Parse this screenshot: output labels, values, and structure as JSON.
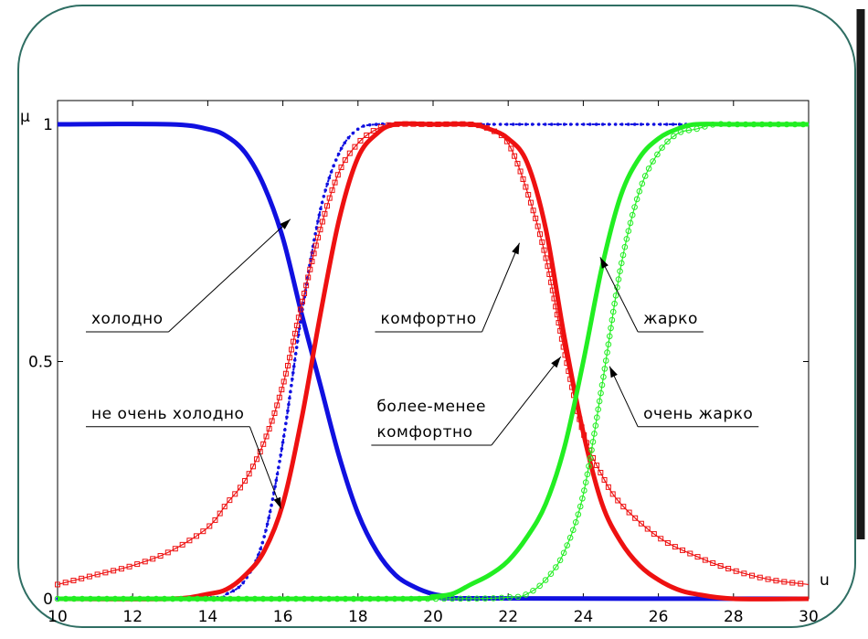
{
  "chart_data": {
    "type": "line",
    "title": "",
    "xlabel": "u",
    "ylabel": "μ",
    "xlim": [
      10,
      30
    ],
    "ylim": [
      0,
      1
    ],
    "x_ticks": [
      "10",
      "12",
      "14",
      "16",
      "18",
      "20",
      "22",
      "24",
      "26",
      "28",
      "30"
    ],
    "y_ticks": [
      "0",
      "0.5",
      "1"
    ],
    "grid": false,
    "series": [
      {
        "key": "cold",
        "color": "#1010e0",
        "style": "solid",
        "marker": "none",
        "x": [
          10,
          13,
          14,
          14.5,
          15,
          15.5,
          16,
          16.5,
          17,
          17.5,
          18,
          18.5,
          19,
          19.5,
          20,
          20.5,
          21,
          30
        ],
        "y": [
          1,
          1,
          0.99,
          0.975,
          0.94,
          0.87,
          0.76,
          0.6,
          0.45,
          0.3,
          0.18,
          0.1,
          0.05,
          0.025,
          0.01,
          0.004,
          0.001,
          0
        ]
      },
      {
        "key": "not_very_cold",
        "color": "#1010e0",
        "style": "dotted",
        "marker": "dot",
        "x": [
          10,
          14,
          14.5,
          15,
          15.5,
          16,
          16.5,
          17,
          17.5,
          18,
          18.5,
          19,
          20,
          30
        ],
        "y": [
          0,
          0.002,
          0.01,
          0.04,
          0.13,
          0.33,
          0.6,
          0.82,
          0.94,
          0.99,
          1,
          1,
          1,
          1
        ]
      },
      {
        "key": "comfortable",
        "color": "#ee1111",
        "style": "solid",
        "marker": "none",
        "x": [
          10,
          13,
          14,
          14.5,
          15,
          15.5,
          16,
          16.5,
          17,
          17.5,
          18,
          18.5,
          19,
          20,
          21,
          21.5,
          22,
          22.5,
          23,
          23.5,
          24,
          24.5,
          25,
          25.5,
          26,
          26.5,
          27,
          28,
          30
        ],
        "y": [
          0,
          0,
          0.01,
          0.02,
          0.05,
          0.1,
          0.2,
          0.38,
          0.6,
          0.8,
          0.93,
          0.98,
          1,
          1,
          1,
          0.99,
          0.97,
          0.92,
          0.78,
          0.55,
          0.35,
          0.2,
          0.12,
          0.07,
          0.04,
          0.02,
          0.01,
          0,
          0
        ]
      },
      {
        "key": "more_or_less_comfortable",
        "color": "#ee1111",
        "style": "solid-thin",
        "marker": "square",
        "x": [
          10,
          11,
          12,
          13,
          14,
          14.5,
          15,
          15.5,
          16,
          16.5,
          17,
          17.5,
          18,
          18.5,
          19,
          20,
          21,
          21.5,
          22,
          22.5,
          23,
          23.5,
          24,
          24.5,
          25,
          26,
          27,
          28,
          29,
          30
        ],
        "y": [
          0.03,
          0.05,
          0.07,
          0.1,
          0.15,
          0.2,
          0.25,
          0.33,
          0.45,
          0.62,
          0.78,
          0.9,
          0.96,
          0.99,
          1,
          1,
          1,
          0.99,
          0.96,
          0.86,
          0.72,
          0.52,
          0.35,
          0.26,
          0.2,
          0.13,
          0.09,
          0.06,
          0.04,
          0.03
        ]
      },
      {
        "key": "hot",
        "color": "#22ee22",
        "style": "solid",
        "marker": "none",
        "x": [
          10,
          19,
          20,
          20.5,
          21,
          21.5,
          22,
          22.5,
          23,
          23.5,
          24,
          24.5,
          25,
          25.5,
          26,
          26.5,
          27,
          28,
          30
        ],
        "y": [
          0,
          0,
          0.005,
          0.01,
          0.03,
          0.05,
          0.08,
          0.13,
          0.2,
          0.32,
          0.5,
          0.7,
          0.85,
          0.93,
          0.97,
          0.99,
          1,
          1,
          1
        ]
      },
      {
        "key": "very_hot",
        "color": "#22ee22",
        "style": "solid-thin",
        "marker": "circle",
        "x": [
          10,
          20,
          22,
          22.5,
          23,
          23.5,
          24,
          24.5,
          25,
          25.5,
          26,
          26.5,
          27,
          27.5,
          28,
          30
        ],
        "y": [
          0,
          0,
          0.003,
          0.01,
          0.04,
          0.1,
          0.22,
          0.45,
          0.7,
          0.86,
          0.94,
          0.98,
          0.99,
          1,
          1,
          1
        ]
      }
    ],
    "annotations": [
      {
        "key": "cold",
        "text": "холодно",
        "tx": 10.9,
        "ty": 0.58,
        "ax": 16.2,
        "ay": 0.8
      },
      {
        "key": "not_very_cold",
        "text": "не очень холодно",
        "tx": 10.9,
        "ty": 0.38,
        "ax": 15.95,
        "ay": 0.19
      },
      {
        "key": "comfortable",
        "text": "комфортно",
        "tx": 18.6,
        "ty": 0.58,
        "ax": 22.3,
        "ay": 0.75
      },
      {
        "key": "more_or_less_comfortable",
        "text": "более-менее",
        "text2": "комфортно",
        "tx": 18.5,
        "ty": 0.395,
        "ax": 23.4,
        "ay": 0.51
      },
      {
        "key": "hot",
        "text": "жарко",
        "tx": 25.6,
        "ty": 0.58,
        "ax": 24.45,
        "ay": 0.72
      },
      {
        "key": "very_hot",
        "text": "очень жарко",
        "tx": 25.6,
        "ty": 0.38,
        "ax": 24.7,
        "ay": 0.49
      }
    ]
  }
}
